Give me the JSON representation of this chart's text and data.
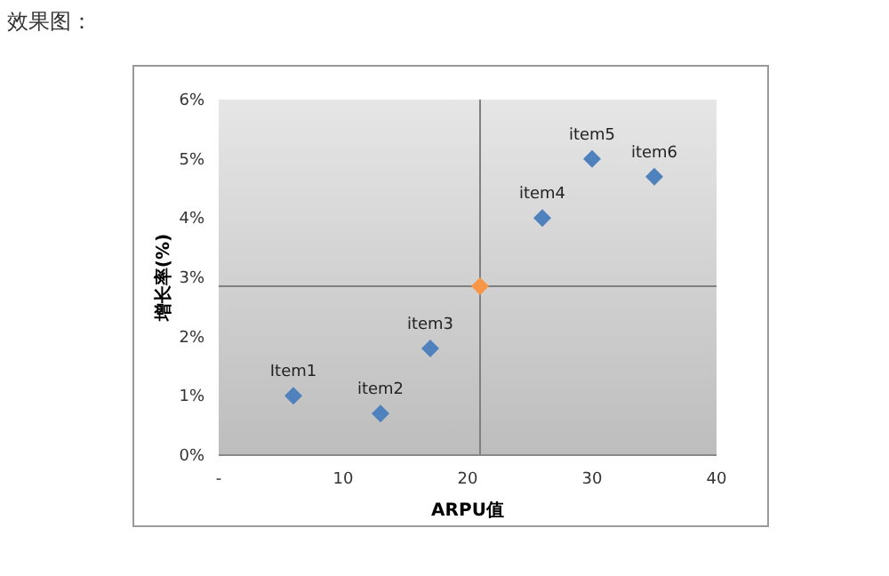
{
  "chart_data": {
    "type": "scatter",
    "title": "效果图：",
    "xlabel": "ARPU值",
    "ylabel": "增长率(%)",
    "marker": "diamond",
    "xlim": [
      0,
      40
    ],
    "xticks": [
      {
        "value": 0,
        "label": "-"
      },
      10,
      20,
      30,
      40
    ],
    "ylim": [
      0,
      6
    ],
    "yticks": [
      {
        "value": 0,
        "label": "0%"
      },
      {
        "value": 1,
        "label": "1%"
      },
      {
        "value": 2,
        "label": "2%"
      },
      {
        "value": 3,
        "label": "3%"
      },
      {
        "value": 4,
        "label": "4%"
      },
      {
        "value": 5,
        "label": "5%"
      },
      {
        "value": 6,
        "label": "6%"
      }
    ],
    "series": [
      {
        "color": "#4f81bd",
        "x": [
          6,
          13,
          17,
          26,
          30,
          35
        ],
        "values": [
          1.0,
          0.7,
          1.8,
          4.0,
          5.0,
          4.7
        ]
      },
      {
        "color": "#f79646",
        "x": [
          21
        ],
        "values": [
          2.85
        ]
      }
    ],
    "ref_lines": [
      {
        "axis": "x",
        "value": 21,
        "color": "#7f7f7f"
      },
      {
        "axis": "y",
        "value": 2.85,
        "color": "#7f7f7f"
      }
    ],
    "annotations": [
      {
        "text": "Item1",
        "x": 6,
        "y": 1.0
      },
      {
        "text": "item2",
        "x": 13,
        "y": 0.7
      },
      {
        "text": "item3",
        "x": 17,
        "y": 1.8
      },
      {
        "text": "item4",
        "x": 26,
        "y": 4.0
      },
      {
        "text": "item5",
        "x": 30,
        "y": 5.0
      },
      {
        "text": "item6",
        "x": 35,
        "y": 4.7
      }
    ]
  }
}
